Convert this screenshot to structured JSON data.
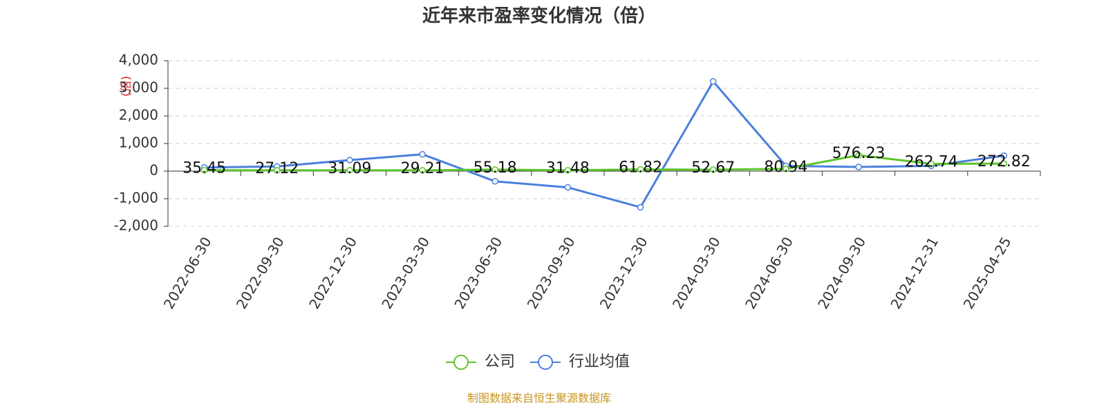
{
  "chart_data": {
    "type": "line",
    "title": "近年来市盈率变化情况（倍）",
    "y_label": "(倍)",
    "categories": [
      "2022-06-30",
      "2022-09-30",
      "2022-12-30",
      "2023-03-30",
      "2023-06-30",
      "2023-09-30",
      "2023-12-30",
      "2024-03-30",
      "2024-06-30",
      "2024-09-30",
      "2024-12-31",
      "2025-04-25"
    ],
    "series": [
      {
        "name": "公司",
        "color": "#5cc52b",
        "values": [
          35.45,
          27.12,
          31.09,
          29.21,
          55.18,
          31.48,
          61.82,
          52.67,
          80.94,
          576.23,
          262.74,
          272.82
        ],
        "show_labels": true
      },
      {
        "name": "行业均值",
        "color": "#4a7fdc",
        "values": [
          130,
          170,
          400,
          610,
          -370,
          -590,
          -1310,
          3250,
          190,
          150,
          190,
          560
        ],
        "show_labels": false
      }
    ],
    "ylim": [
      -2000,
      4000
    ],
    "yticks": [
      {
        "value": 4000,
        "label": "4,000"
      },
      {
        "value": 3000,
        "label": "3,000"
      },
      {
        "value": 2000,
        "label": "2,000"
      },
      {
        "value": 1000,
        "label": "1,000"
      },
      0,
      {
        "value": -1000,
        "label": "-1,000"
      },
      {
        "value": -2000,
        "label": "-2,000"
      }
    ],
    "grid": true,
    "footer": "制图数据来自恒生聚源数据库"
  }
}
